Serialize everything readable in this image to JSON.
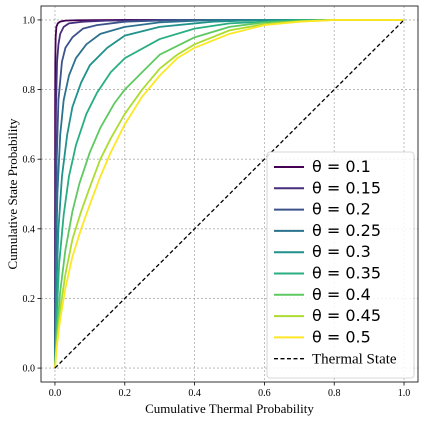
{
  "chart_data": {
    "type": "line",
    "title": "",
    "xlabel": "Cumulative Thermal Probability",
    "ylabel": "Cumulative State Probability",
    "xlim": [
      -0.04,
      1.04
    ],
    "ylim": [
      -0.04,
      1.04
    ],
    "xticks": [
      "0.0",
      "0.2",
      "0.4",
      "0.6",
      "0.8",
      "1.0"
    ],
    "yticks": [
      "0.0",
      "0.2",
      "0.4",
      "0.6",
      "0.8",
      "1.0"
    ],
    "grid": true,
    "legend_position": "lower-right",
    "series": [
      {
        "name": "θ = 0.1",
        "color": "#440154",
        "style": "solid",
        "x": [
          0,
          0.0005,
          0.001,
          0.002,
          0.004,
          0.008,
          0.015,
          0.03,
          0.06,
          0.2,
          1.0
        ],
        "y": [
          0,
          0.75,
          0.88,
          0.95,
          0.98,
          0.99,
          0.995,
          0.998,
          0.999,
          1.0,
          1.0
        ]
      },
      {
        "name": "θ = 0.15",
        "color": "#472d7b",
        "style": "solid",
        "x": [
          0,
          0.001,
          0.003,
          0.006,
          0.01,
          0.015,
          0.025,
          0.04,
          0.08,
          0.15,
          0.3,
          1.0
        ],
        "y": [
          0,
          0.45,
          0.75,
          0.88,
          0.93,
          0.96,
          0.98,
          0.99,
          0.995,
          0.998,
          1.0,
          1.0
        ]
      },
      {
        "name": "θ = 0.2",
        "color": "#3b528b",
        "style": "solid",
        "x": [
          0,
          0.002,
          0.005,
          0.01,
          0.02,
          0.03,
          0.05,
          0.08,
          0.12,
          0.2,
          0.35,
          1.0
        ],
        "y": [
          0,
          0.35,
          0.6,
          0.77,
          0.88,
          0.92,
          0.95,
          0.975,
          0.985,
          0.995,
          1.0,
          1.0
        ]
      },
      {
        "name": "θ = 0.25",
        "color": "#2c728e",
        "style": "solid",
        "x": [
          0,
          0.003,
          0.007,
          0.015,
          0.025,
          0.04,
          0.06,
          0.09,
          0.13,
          0.2,
          0.3,
          0.45,
          1.0
        ],
        "y": [
          0,
          0.3,
          0.5,
          0.67,
          0.77,
          0.84,
          0.89,
          0.93,
          0.96,
          0.98,
          0.993,
          1.0,
          1.0
        ]
      },
      {
        "name": "θ = 0.3",
        "color": "#21918c",
        "style": "solid",
        "x": [
          0,
          0.004,
          0.01,
          0.02,
          0.035,
          0.05,
          0.075,
          0.1,
          0.15,
          0.2,
          0.3,
          0.45,
          0.6,
          1.0
        ],
        "y": [
          0,
          0.22,
          0.4,
          0.55,
          0.67,
          0.75,
          0.82,
          0.87,
          0.92,
          0.955,
          0.98,
          0.995,
          1.0,
          1.0
        ]
      },
      {
        "name": "θ = 0.35",
        "color": "#28ae80",
        "style": "solid",
        "x": [
          0,
          0.005,
          0.012,
          0.025,
          0.04,
          0.06,
          0.09,
          0.12,
          0.16,
          0.2,
          0.3,
          0.4,
          0.5,
          0.7,
          1.0
        ],
        "y": [
          0,
          0.15,
          0.3,
          0.44,
          0.55,
          0.64,
          0.73,
          0.79,
          0.85,
          0.89,
          0.945,
          0.975,
          0.99,
          1.0,
          1.0
        ]
      },
      {
        "name": "θ = 0.4",
        "color": "#5ec962",
        "style": "solid",
        "x": [
          0,
          0.005,
          0.015,
          0.03,
          0.05,
          0.07,
          0.1,
          0.13,
          0.17,
          0.2,
          0.25,
          0.3,
          0.4,
          0.5,
          0.6,
          0.8,
          1.0
        ],
        "y": [
          0,
          0.1,
          0.22,
          0.34,
          0.45,
          0.53,
          0.62,
          0.69,
          0.76,
          0.8,
          0.85,
          0.9,
          0.95,
          0.98,
          0.993,
          1.0,
          1.0
        ]
      },
      {
        "name": "θ = 0.45",
        "color": "#addc30",
        "style": "solid",
        "x": [
          0,
          0.005,
          0.015,
          0.03,
          0.05,
          0.075,
          0.1,
          0.13,
          0.16,
          0.2,
          0.25,
          0.3,
          0.35,
          0.4,
          0.5,
          0.6,
          0.7,
          0.8,
          1.0
        ],
        "y": [
          0,
          0.07,
          0.17,
          0.27,
          0.37,
          0.45,
          0.52,
          0.6,
          0.66,
          0.73,
          0.8,
          0.86,
          0.9,
          0.93,
          0.97,
          0.988,
          0.996,
          1.0,
          1.0
        ]
      },
      {
        "name": "θ = 0.5",
        "color": "#fde725",
        "style": "solid",
        "x": [
          0,
          0.005,
          0.015,
          0.03,
          0.05,
          0.075,
          0.1,
          0.13,
          0.16,
          0.2,
          0.25,
          0.3,
          0.35,
          0.4,
          0.5,
          0.6,
          0.7,
          0.8,
          1.0
        ],
        "y": [
          0,
          0.06,
          0.14,
          0.23,
          0.32,
          0.4,
          0.47,
          0.55,
          0.62,
          0.7,
          0.78,
          0.84,
          0.89,
          0.92,
          0.96,
          0.985,
          0.995,
          1.0,
          1.0
        ]
      },
      {
        "name": "Thermal State",
        "color": "#000000",
        "style": "dashed",
        "x": [
          0,
          1
        ],
        "y": [
          0,
          1
        ]
      }
    ]
  }
}
